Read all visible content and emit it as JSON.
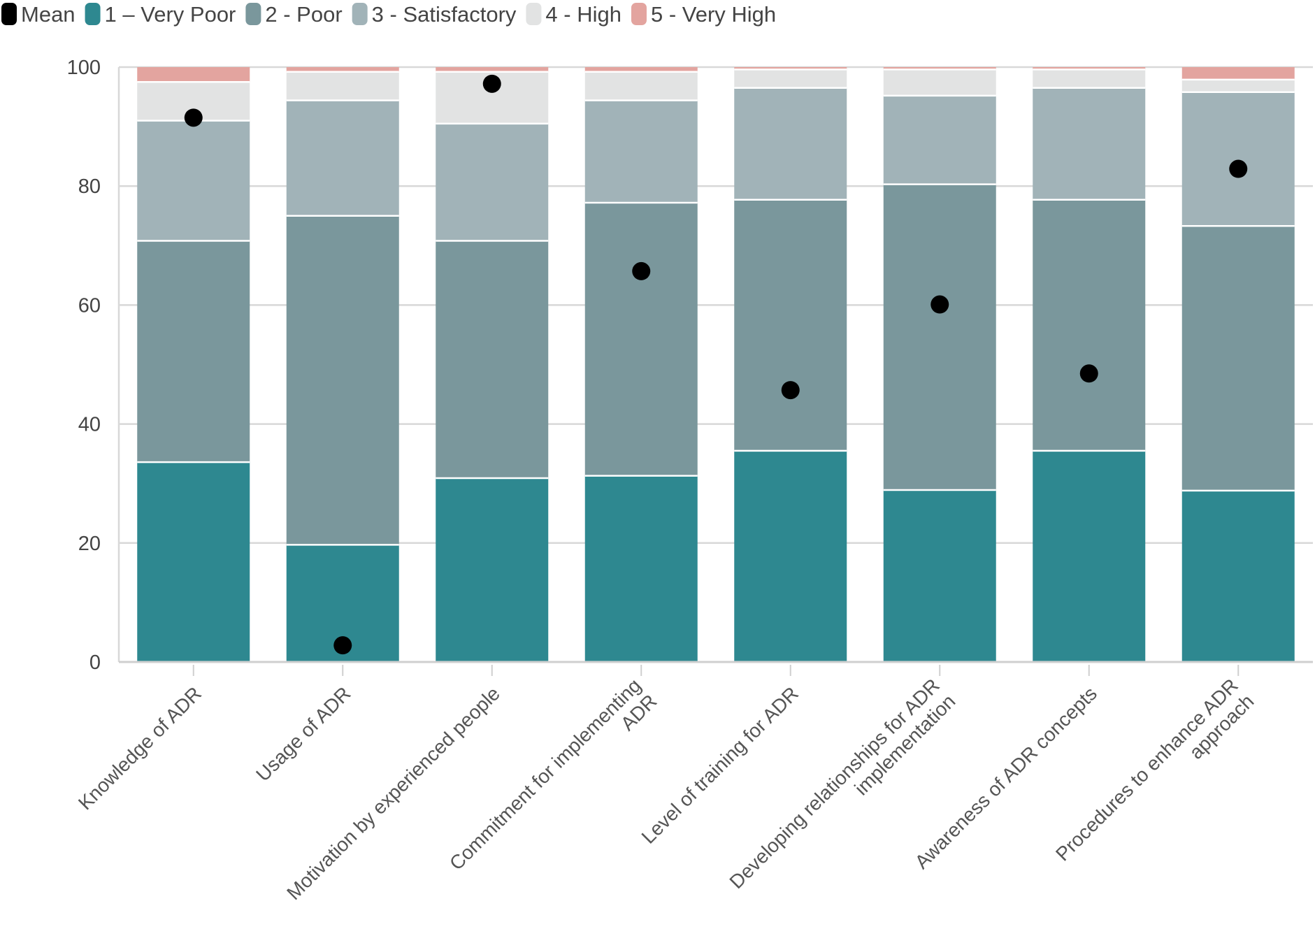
{
  "chart_data": {
    "type": "bar",
    "stacked": true,
    "title": "",
    "xlabel": "",
    "ylabel": "",
    "ylim": [
      0,
      100
    ],
    "yticks": [
      0,
      20,
      40,
      60,
      80,
      100
    ],
    "grid": true,
    "legend_position": "top-left",
    "categories": [
      [
        "Knowledge of ADR"
      ],
      [
        "Usage of ADR"
      ],
      [
        "Motivation by experienced people"
      ],
      [
        "Commitment for implementing",
        "ADR"
      ],
      [
        "Level of training for ADR"
      ],
      [
        "Developing relationships for ADR",
        "implementation"
      ],
      [
        "Awareness of ADR concepts"
      ],
      [
        "Procedures to enhance ADR",
        "approach"
      ]
    ],
    "series": [
      {
        "name": "1 – Very Poor",
        "color": "#2e8890",
        "values": [
          33.6,
          19.7,
          30.9,
          31.3,
          35.5,
          28.9,
          35.5,
          28.8
        ]
      },
      {
        "name": "2 - Poor",
        "color": "#7a979c",
        "values": [
          37.2,
          55.3,
          39.9,
          45.9,
          42.2,
          51.4,
          42.2,
          44.5
        ]
      },
      {
        "name": "3 - Satisfactory",
        "color": "#a1b3b8",
        "values": [
          20.2,
          19.4,
          19.7,
          17.2,
          18.8,
          14.9,
          18.8,
          22.5
        ]
      },
      {
        "name": "4 - High",
        "color": "#e2e3e3",
        "values": [
          6.5,
          4.8,
          8.7,
          4.8,
          3.1,
          4.4,
          3.1,
          2.1
        ]
      },
      {
        "name": "5 - Very High",
        "color": "#e3a49f",
        "values": [
          2.5,
          0.8,
          0.8,
          0.8,
          0.4,
          0.4,
          0.4,
          2.1
        ]
      }
    ],
    "mean": {
      "name": "Mean",
      "color": "#000000",
      "values": [
        91.5,
        2.8,
        97.2,
        65.7,
        45.7,
        60.1,
        48.5,
        82.9
      ]
    }
  }
}
